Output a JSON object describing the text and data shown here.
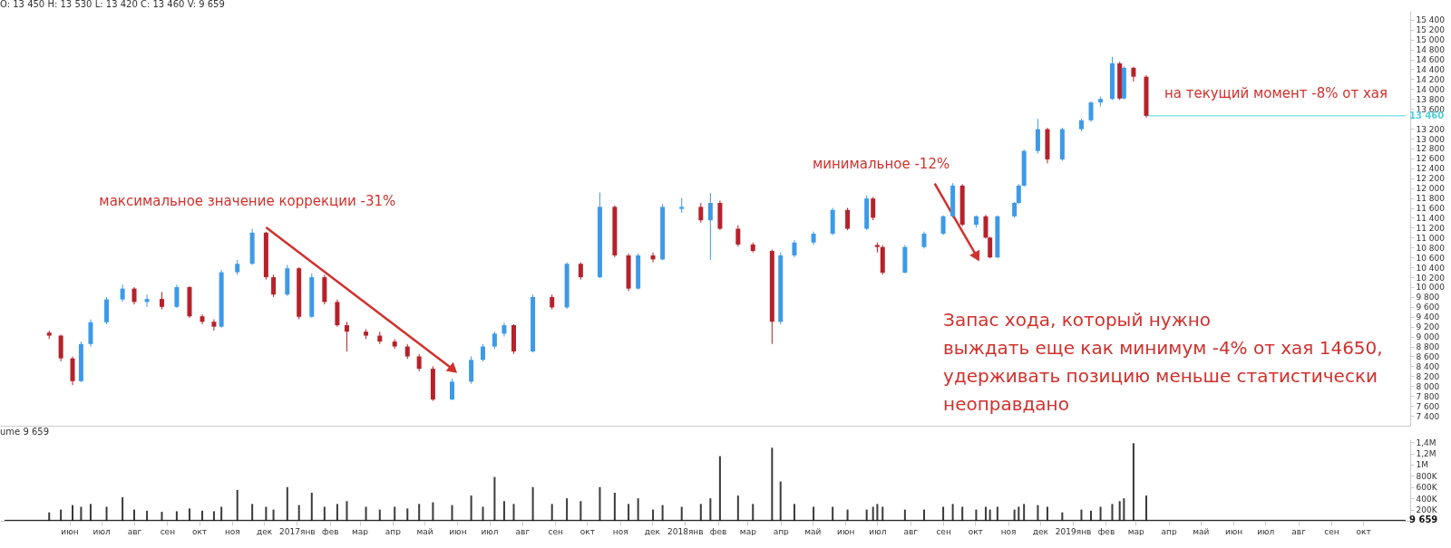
{
  "chart_data": [
    {
      "type": "candlestick",
      "title": "O: 13 450  H: 13 530  L: 13 420  C: 13 460  V: 9 659",
      "x": [
        "2016-05-13",
        "2016-05-24",
        "2016-06-04",
        "2016-06-12",
        "2016-06-21",
        "2016-07-06",
        "2016-07-21",
        "2016-08-01",
        "2016-08-13",
        "2016-08-27",
        "2016-09-10",
        "2016-09-22",
        "2016-10-04",
        "2016-10-15",
        "2016-10-22",
        "2016-11-06",
        "2016-11-20",
        "2016-12-03",
        "2016-12-10",
        "2016-12-23",
        "2017-01-03",
        "2017-01-15",
        "2017-01-27",
        "2017-02-08",
        "2017-02-17",
        "2017-03-07",
        "2017-03-20",
        "2017-04-03",
        "2017-04-15",
        "2017-04-26",
        "2017-05-09",
        "2017-05-27",
        "2017-06-14",
        "2017-06-25",
        "2017-07-06",
        "2017-07-15",
        "2017-07-24",
        "2017-08-11",
        "2017-08-29",
        "2017-09-12",
        "2017-09-25",
        "2017-10-13",
        "2017-10-27",
        "2017-11-09",
        "2017-11-18",
        "2017-12-02",
        "2017-12-11",
        "2017-12-29",
        "2018-01-16",
        "2018-01-25",
        "2018-02-03",
        "2018-02-20",
        "2018-03-06",
        "2018-03-24",
        "2018-04-01",
        "2018-04-14",
        "2018-05-02",
        "2018-05-20",
        "2018-06-03",
        "2018-06-21",
        "2018-06-27",
        "2018-07-01",
        "2018-07-06",
        "2018-07-27",
        "2018-08-14",
        "2018-09-01",
        "2018-09-10",
        "2018-09-19",
        "2018-10-02",
        "2018-10-11",
        "2018-10-15",
        "2018-10-22",
        "2018-11-07",
        "2018-11-11",
        "2018-11-16",
        "2018-11-29",
        "2018-12-08",
        "2018-12-22",
        "2019-01-09",
        "2019-01-18",
        "2019-01-27",
        "2019-02-07",
        "2019-02-14",
        "2019-02-18",
        "2019-02-27",
        "2019-03-11"
      ],
      "ohlc": [
        [
          9080,
          9120,
          8950,
          9020
        ],
        [
          9020,
          9040,
          8500,
          8560
        ],
        [
          8560,
          8600,
          8020,
          8100
        ],
        [
          8100,
          8900,
          8080,
          8850
        ],
        [
          8850,
          9350,
          8800,
          9290
        ],
        [
          9290,
          9800,
          9250,
          9750
        ],
        [
          9750,
          10050,
          9700,
          9970
        ],
        [
          9970,
          10000,
          9650,
          9700
        ],
        [
          9700,
          9850,
          9600,
          9760
        ],
        [
          9760,
          9900,
          9550,
          9600
        ],
        [
          9600,
          10050,
          9580,
          10000
        ],
        [
          10000,
          10020,
          9380,
          9410
        ],
        [
          9410,
          9450,
          9250,
          9300
        ],
        [
          9300,
          9350,
          9120,
          9200
        ],
        [
          9200,
          10350,
          9180,
          10300
        ],
        [
          10300,
          10550,
          10250,
          10470
        ],
        [
          10470,
          11180,
          10450,
          11100
        ],
        [
          11100,
          11120,
          10150,
          10200
        ],
        [
          10200,
          10250,
          9800,
          9850
        ],
        [
          9850,
          10450,
          9820,
          10380
        ],
        [
          10380,
          10400,
          9350,
          9400
        ],
        [
          9400,
          10280,
          9380,
          10200
        ],
        [
          10200,
          10250,
          9650,
          9700
        ],
        [
          9700,
          9750,
          9200,
          9230
        ],
        [
          9230,
          9300,
          8700,
          9100
        ],
        [
          9100,
          9150,
          8950,
          9020
        ],
        [
          9020,
          9100,
          8850,
          8900
        ],
        [
          8900,
          8950,
          8750,
          8800
        ],
        [
          8800,
          8850,
          8550,
          8600
        ],
        [
          8600,
          8650,
          8300,
          8350
        ],
        [
          8350,
          8400,
          7700,
          7730
        ],
        [
          7730,
          8150,
          7720,
          8090
        ],
        [
          8090,
          8600,
          8050,
          8530
        ],
        [
          8530,
          8850,
          8500,
          8800
        ],
        [
          8800,
          9100,
          8750,
          9060
        ],
        [
          9060,
          9280,
          9000,
          9230
        ],
        [
          9230,
          9250,
          8650,
          8700
        ],
        [
          8700,
          9850,
          8680,
          9800
        ],
        [
          9800,
          9850,
          9550,
          9590
        ],
        [
          9590,
          10500,
          9560,
          10470
        ],
        [
          10470,
          10500,
          10150,
          10200
        ],
        [
          10200,
          11910,
          10180,
          11620
        ],
        [
          11620,
          11650,
          10600,
          10640
        ],
        [
          10640,
          10680,
          9920,
          9970
        ],
        [
          9970,
          10680,
          9950,
          10640
        ],
        [
          10640,
          10700,
          10500,
          10560
        ],
        [
          10560,
          11680,
          10540,
          11620
        ],
        [
          11580,
          11800,
          11500,
          11620
        ],
        [
          11620,
          11700,
          11300,
          11350
        ],
        [
          11350,
          11900,
          10550,
          11700
        ],
        [
          11700,
          11750,
          11150,
          11180
        ],
        [
          11180,
          11250,
          10820,
          10860
        ],
        [
          10860,
          10900,
          10700,
          10730
        ],
        [
          10730,
          10760,
          8850,
          9300
        ],
        [
          9300,
          10700,
          9250,
          10640
        ],
        [
          10640,
          10950,
          10600,
          10900
        ],
        [
          10900,
          11120,
          10850,
          11080
        ],
        [
          11080,
          11600,
          11050,
          11560
        ],
        [
          11560,
          11600,
          11150,
          11180
        ],
        [
          11180,
          11850,
          11150,
          11790
        ],
        [
          11790,
          11820,
          11350,
          11400
        ],
        [
          10850,
          10900,
          10700,
          10810
        ],
        [
          10810,
          10850,
          10250,
          10290
        ],
        [
          10290,
          10850,
          10280,
          10810
        ],
        [
          10810,
          11120,
          10780,
          11080
        ],
        [
          11080,
          11450,
          11050,
          11430
        ],
        [
          11430,
          12100,
          11400,
          12050
        ],
        [
          12050,
          12080,
          11230,
          11260
        ],
        [
          11260,
          11450,
          11200,
          11430
        ],
        [
          11430,
          11460,
          10980,
          11000
        ],
        [
          11000,
          11020,
          10580,
          10600
        ],
        [
          10600,
          11450,
          10590,
          11430
        ],
        [
          11430,
          11720,
          11400,
          11700
        ],
        [
          11700,
          12080,
          11680,
          12050
        ],
        [
          12050,
          12780,
          12030,
          12750
        ],
        [
          12750,
          13400,
          12700,
          13190
        ],
        [
          13190,
          13220,
          12500,
          12580
        ],
        [
          12580,
          13220,
          12550,
          13190
        ],
        [
          13190,
          13400,
          13150,
          13370
        ],
        [
          13370,
          13750,
          13340,
          13730
        ],
        [
          13730,
          13850,
          13650,
          13800
        ],
        [
          13800,
          14650,
          13780,
          14520
        ],
        [
          14520,
          14550,
          13780,
          13810
        ],
        [
          13810,
          14460,
          13790,
          14430
        ],
        [
          14430,
          14450,
          14150,
          14250
        ],
        [
          14250,
          14280,
          13420,
          13460
        ]
      ],
      "colors": [
        "#b5222b",
        "#b5222b",
        "#b5222b",
        "#3d9ae8",
        "#3d9ae8",
        "#3d9ae8",
        "#3d9ae8",
        "#b5222b",
        "#3d9ae8",
        "#b5222b",
        "#3d9ae8",
        "#b5222b",
        "#b5222b",
        "#b5222b",
        "#3d9ae8",
        "#3d9ae8",
        "#3d9ae8",
        "#b5222b",
        "#b5222b",
        "#3d9ae8",
        "#b5222b",
        "#3d9ae8",
        "#b5222b",
        "#b5222b",
        "#b5222b",
        "#b5222b",
        "#b5222b",
        "#b5222b",
        "#b5222b",
        "#b5222b",
        "#b5222b",
        "#3d9ae8",
        "#3d9ae8",
        "#3d9ae8",
        "#3d9ae8",
        "#3d9ae8",
        "#b5222b",
        "#3d9ae8",
        "#b5222b",
        "#3d9ae8",
        "#b5222b",
        "#3d9ae8",
        "#b5222b",
        "#b5222b",
        "#3d9ae8",
        "#b5222b",
        "#3d9ae8",
        "#3d9ae8",
        "#b5222b",
        "#3d9ae8",
        "#b5222b",
        "#b5222b",
        "#b5222b",
        "#b5222b",
        "#3d9ae8",
        "#3d9ae8",
        "#3d9ae8",
        "#3d9ae8",
        "#b5222b",
        "#3d9ae8",
        "#b5222b",
        "#b5222b",
        "#b5222b",
        "#3d9ae8",
        "#3d9ae8",
        "#3d9ae8",
        "#3d9ae8",
        "#b5222b",
        "#3d9ae8",
        "#b5222b",
        "#b5222b",
        "#3d9ae8",
        "#3d9ae8",
        "#3d9ae8",
        "#3d9ae8",
        "#3d9ae8",
        "#b5222b",
        "#3d9ae8",
        "#3d9ae8",
        "#3d9ae8",
        "#3d9ae8",
        "#3d9ae8",
        "#b5222b",
        "#3d9ae8",
        "#b5222b",
        "#b5222b"
      ],
      "xlim": [
        "2016-04-01",
        "2019-11-10"
      ],
      "ylim": [
        7200,
        15580
      ],
      "yticks": [
        {
          "value": 7400,
          "label": "7 400"
        },
        {
          "value": 7600,
          "label": "7 600"
        },
        {
          "value": 7800,
          "label": "7 800"
        },
        {
          "value": 8000,
          "label": "8 000"
        },
        {
          "value": 8200,
          "label": "8 200"
        },
        {
          "value": 8400,
          "label": "8 400"
        },
        {
          "value": 8600,
          "label": "8 600"
        },
        {
          "value": 8800,
          "label": "8 800"
        },
        {
          "value": 9000,
          "label": "9 000"
        },
        {
          "value": 9200,
          "label": "9 200"
        },
        {
          "value": 9400,
          "label": "9 400"
        },
        {
          "value": 9600,
          "label": "9 600"
        },
        {
          "value": 9800,
          "label": "9 800"
        },
        {
          "value": 10000,
          "label": "10 000"
        },
        {
          "value": 10200,
          "label": "10 200"
        },
        {
          "value": 10400,
          "label": "10 400"
        },
        {
          "value": 10600,
          "label": "10 600"
        },
        {
          "value": 10800,
          "label": "10 800"
        },
        {
          "value": 11000,
          "label": "11 000"
        },
        {
          "value": 11200,
          "label": "11 200"
        },
        {
          "value": 11400,
          "label": "11 400"
        },
        {
          "value": 11600,
          "label": "11 600"
        },
        {
          "value": 11800,
          "label": "11 800"
        },
        {
          "value": 12000,
          "label": "12 000"
        },
        {
          "value": 12200,
          "label": "12 200"
        },
        {
          "value": 12400,
          "label": "12 400"
        },
        {
          "value": 12600,
          "label": "12 600"
        },
        {
          "value": 12800,
          "label": "12 800"
        },
        {
          "value": 13000,
          "label": "13 000"
        },
        {
          "value": 13200,
          "label": "13 200"
        },
        {
          "value": 13600,
          "label": "13 600"
        },
        {
          "value": 13800,
          "label": "13 800"
        },
        {
          "value": 14000,
          "label": "14 000"
        },
        {
          "value": 14200,
          "label": "14 200"
        },
        {
          "value": 14400,
          "label": "14 400"
        },
        {
          "value": 14600,
          "label": "14 600"
        },
        {
          "value": 14800,
          "label": "14 800"
        },
        {
          "value": 15000,
          "label": "15 000"
        },
        {
          "value": 15200,
          "label": "15 200"
        },
        {
          "value": 15400,
          "label": "15 400"
        }
      ],
      "tick_labels": "y",
      "ref_lines": [
        {
          "axis": "y",
          "value": 13460,
          "label": "13 460",
          "color": "#4fd1d9"
        }
      ],
      "annotations": [
        "максимальное значение коррекции -31%",
        "минимальное -12%",
        "на текущий момент -8% от хая",
        "Запас хода, который нужно\nвыждать еще как минимум -4% от хая 14650,\n удерживать позицию меньше статистически\nнеоправдано"
      ]
    },
    {
      "type": "bar",
      "title": "ume 9 659",
      "color": "#3a3a3a",
      "x": [
        "2016-05-13",
        "2016-05-24",
        "2016-06-04",
        "2016-06-12",
        "2016-06-21",
        "2016-07-06",
        "2016-07-21",
        "2016-08-01",
        "2016-08-13",
        "2016-08-27",
        "2016-09-10",
        "2016-09-22",
        "2016-10-04",
        "2016-10-15",
        "2016-10-22",
        "2016-11-06",
        "2016-11-20",
        "2016-12-03",
        "2016-12-10",
        "2016-12-23",
        "2017-01-03",
        "2017-01-15",
        "2017-01-27",
        "2017-02-08",
        "2017-02-17",
        "2017-03-07",
        "2017-03-20",
        "2017-04-03",
        "2017-04-15",
        "2017-04-26",
        "2017-05-09",
        "2017-05-27",
        "2017-06-14",
        "2017-06-25",
        "2017-07-06",
        "2017-07-15",
        "2017-07-24",
        "2017-08-11",
        "2017-08-29",
        "2017-09-12",
        "2017-09-25",
        "2017-10-13",
        "2017-10-27",
        "2017-11-09",
        "2017-11-18",
        "2017-12-02",
        "2017-12-11",
        "2017-12-29",
        "2018-01-16",
        "2018-01-25",
        "2018-02-03",
        "2018-02-20",
        "2018-03-06",
        "2018-03-24",
        "2018-04-01",
        "2018-04-14",
        "2018-05-02",
        "2018-05-20",
        "2018-06-03",
        "2018-06-21",
        "2018-06-27",
        "2018-07-01",
        "2018-07-06",
        "2018-07-27",
        "2018-08-14",
        "2018-09-01",
        "2018-09-10",
        "2018-09-19",
        "2018-10-02",
        "2018-10-11",
        "2018-10-15",
        "2018-10-22",
        "2018-11-07",
        "2018-11-11",
        "2018-11-16",
        "2018-11-29",
        "2018-12-08",
        "2018-12-22",
        "2019-01-09",
        "2019-01-18",
        "2019-01-27",
        "2019-02-07",
        "2019-02-14",
        "2019-02-18",
        "2019-02-27",
        "2019-03-11"
      ],
      "values": [
        150000,
        200000,
        280000,
        250000,
        300000,
        250000,
        420000,
        200000,
        180000,
        160000,
        170000,
        220000,
        180000,
        170000,
        250000,
        550000,
        300000,
        250000,
        200000,
        600000,
        280000,
        500000,
        250000,
        300000,
        350000,
        250000,
        200000,
        250000,
        220000,
        300000,
        330000,
        280000,
        450000,
        250000,
        780000,
        350000,
        300000,
        600000,
        300000,
        400000,
        350000,
        600000,
        500000,
        300000,
        400000,
        200000,
        280000,
        250000,
        300000,
        400000,
        1150000,
        450000,
        300000,
        1300000,
        700000,
        300000,
        250000,
        250000,
        200000,
        200000,
        250000,
        300000,
        250000,
        200000,
        200000,
        250000,
        300000,
        250000,
        200000,
        250000,
        200000,
        250000,
        200000,
        250000,
        300000,
        280000,
        250000,
        150000,
        200000,
        180000,
        250000,
        300000,
        350000,
        400000,
        1380000,
        450000
      ],
      "xlim": [
        "2016-04-01",
        "2019-11-10"
      ],
      "xticks": [
        {
          "value": "2016-06",
          "label": "июн"
        },
        {
          "value": "2016-07",
          "label": "июл"
        },
        {
          "value": "2016-08",
          "label": "авг"
        },
        {
          "value": "2016-09",
          "label": "сен"
        },
        {
          "value": "2016-10",
          "label": "окт"
        },
        {
          "value": "2016-11",
          "label": "ноя"
        },
        {
          "value": "2016-12",
          "label": "дек"
        },
        {
          "value": "2017-01",
          "label": "2017янв"
        },
        {
          "value": "2017-02",
          "label": "фев"
        },
        {
          "value": "2017-03",
          "label": "мар"
        },
        {
          "value": "2017-04",
          "label": "апр"
        },
        {
          "value": "2017-05",
          "label": "май"
        },
        {
          "value": "2017-06",
          "label": "июн"
        },
        {
          "value": "2017-07",
          "label": "июл"
        },
        {
          "value": "2017-08",
          "label": "авг"
        },
        {
          "value": "2017-09",
          "label": "сен"
        },
        {
          "value": "2017-10",
          "label": "окт"
        },
        {
          "value": "2017-11",
          "label": "ноя"
        },
        {
          "value": "2017-12",
          "label": "дек"
        },
        {
          "value": "2018-01",
          "label": "2018янв"
        },
        {
          "value": "2018-02",
          "label": "фев"
        },
        {
          "value": "2018-03",
          "label": "мар"
        },
        {
          "value": "2018-04",
          "label": "апр"
        },
        {
          "value": "2018-05",
          "label": "май"
        },
        {
          "value": "2018-06",
          "label": "июн"
        },
        {
          "value": "2018-07",
          "label": "июл"
        },
        {
          "value": "2018-08",
          "label": "авг"
        },
        {
          "value": "2018-09",
          "label": "сен"
        },
        {
          "value": "2018-10",
          "label": "окт"
        },
        {
          "value": "2018-11",
          "label": "ноя"
        },
        {
          "value": "2018-12",
          "label": "дек"
        },
        {
          "value": "2019-01",
          "label": "2019янв"
        },
        {
          "value": "2019-02",
          "label": "фев"
        },
        {
          "value": "2019-03",
          "label": "мар"
        },
        {
          "value": "2019-04",
          "label": "апр"
        },
        {
          "value": "2019-05",
          "label": "май"
        },
        {
          "value": "2019-06",
          "label": "июн"
        },
        {
          "value": "2019-07",
          "label": "июл"
        },
        {
          "value": "2019-08",
          "label": "авг"
        },
        {
          "value": "2019-09",
          "label": "сен"
        },
        {
          "value": "2019-10",
          "label": "окт"
        }
      ],
      "ylim": [
        0,
        1450000
      ],
      "yticks": [
        {
          "value": 200000,
          "label": "200K"
        },
        {
          "value": 400000,
          "label": "400K"
        },
        {
          "value": 600000,
          "label": "600K"
        },
        {
          "value": 800000,
          "label": "800K"
        },
        {
          "value": 1000000,
          "label": "1M"
        },
        {
          "value": 1200000,
          "label": "1,2M"
        },
        {
          "value": 1400000,
          "label": "1,4M"
        }
      ],
      "ref_lines": [
        {
          "axis": "y",
          "value": 9659,
          "label": "9 659",
          "color": "#111111"
        }
      ]
    }
  ]
}
